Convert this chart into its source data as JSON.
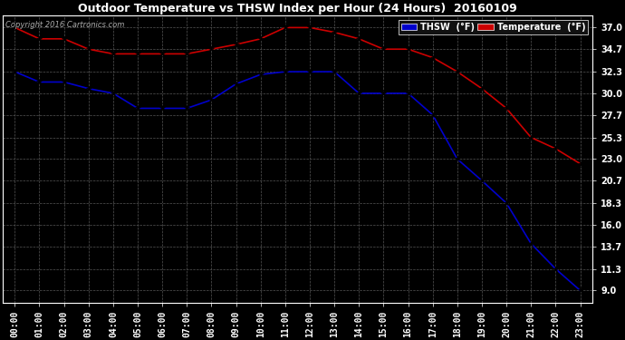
{
  "title": "Outdoor Temperature vs THSW Index per Hour (24 Hours)  20160109",
  "copyright": "Copyright 2016 Cartronics.com",
  "hours": [
    "00:00",
    "01:00",
    "02:00",
    "03:00",
    "04:00",
    "05:00",
    "06:00",
    "07:00",
    "08:00",
    "09:00",
    "10:00",
    "11:00",
    "12:00",
    "13:00",
    "14:00",
    "15:00",
    "16:00",
    "17:00",
    "18:00",
    "19:00",
    "20:00",
    "21:00",
    "22:00",
    "23:00"
  ],
  "temperature": [
    37.0,
    35.8,
    35.8,
    34.7,
    34.2,
    34.2,
    34.2,
    34.2,
    34.7,
    35.2,
    35.8,
    37.0,
    37.0,
    36.5,
    35.8,
    34.7,
    34.7,
    33.8,
    32.3,
    30.5,
    28.4,
    25.3,
    24.1,
    22.5
  ],
  "thsw": [
    32.3,
    31.2,
    31.2,
    30.5,
    30.0,
    28.4,
    28.4,
    28.4,
    29.3,
    31.0,
    32.0,
    32.3,
    32.3,
    32.3,
    30.0,
    30.0,
    30.0,
    27.7,
    23.0,
    20.7,
    18.3,
    14.0,
    11.3,
    9.0
  ],
  "temp_color": "#cc0000",
  "thsw_color": "#0000cc",
  "bg_color": "#000000",
  "plot_bg_color": "#000000",
  "grid_color": "#555555",
  "ytick_labels": [
    "9.0",
    "11.3",
    "13.7",
    "16.0",
    "18.3",
    "20.7",
    "23.0",
    "25.3",
    "27.7",
    "30.0",
    "32.3",
    "34.7",
    "37.0"
  ],
  "ytick_values": [
    9.0,
    11.3,
    13.7,
    16.0,
    18.3,
    20.7,
    23.0,
    25.3,
    27.7,
    30.0,
    32.3,
    34.7,
    37.0
  ],
  "ylim": [
    7.7,
    38.3
  ],
  "legend_thsw_bg": "#0000cc",
  "legend_temp_bg": "#cc0000",
  "marker": "*",
  "marker_size": 4,
  "line_width": 1.2,
  "title_fontsize": 9,
  "tick_fontsize": 7,
  "copyright_fontsize": 6
}
